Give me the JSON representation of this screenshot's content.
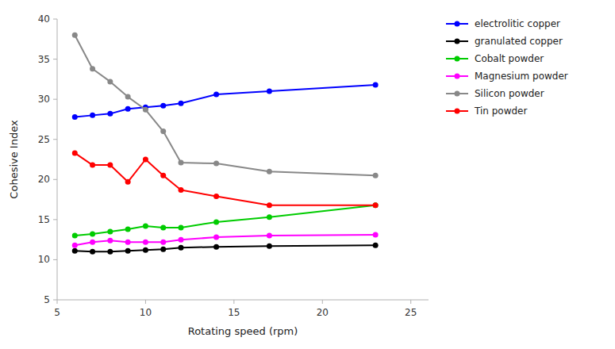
{
  "chart_data": {
    "type": "line",
    "xlabel": "Rotating speed (rpm)",
    "ylabel": "Cohesive Index",
    "x": [
      6,
      7,
      8,
      9,
      10,
      11,
      12,
      14,
      17,
      23
    ],
    "series": [
      {
        "name": "electrolitic copper",
        "color": "#0000FF",
        "marker": "circle",
        "values": [
          27.8,
          28.0,
          28.2,
          28.8,
          29.0,
          29.2,
          29.5,
          30.6,
          31.0,
          31.8
        ]
      },
      {
        "name": "granulated copper",
        "color": "#000000",
        "marker": "circle",
        "values": [
          11.1,
          11.0,
          11.0,
          11.1,
          11.2,
          11.3,
          11.5,
          11.6,
          11.7,
          11.8
        ]
      },
      {
        "name": "Cobalt powder",
        "color": "#00CC00",
        "marker": "circle",
        "values": [
          13.0,
          13.2,
          13.5,
          13.8,
          14.2,
          14.0,
          14.0,
          14.7,
          15.3,
          16.8
        ]
      },
      {
        "name": "Magnesium powder",
        "color": "#FF00FF",
        "marker": "circle",
        "values": [
          11.8,
          12.2,
          12.4,
          12.2,
          12.2,
          12.2,
          12.5,
          12.8,
          13.0,
          13.1
        ]
      },
      {
        "name": "Silicon powder",
        "color": "#888888",
        "marker": "circle",
        "values": [
          38.0,
          33.8,
          32.2,
          30.3,
          28.7,
          26.0,
          22.1,
          22.0,
          21.0,
          20.5
        ]
      },
      {
        "name": "Tin powder",
        "color": "#FF0000",
        "marker": "circle",
        "values": [
          23.3,
          21.8,
          21.8,
          19.7,
          22.5,
          20.5,
          18.7,
          17.9,
          16.8,
          16.8
        ]
      }
    ],
    "xlim": [
      5,
      26
    ],
    "ylim": [
      5,
      40
    ],
    "xticks": [
      5,
      10,
      15,
      20,
      25
    ],
    "yticks": [
      5,
      10,
      15,
      20,
      25,
      30,
      35,
      40
    ],
    "grid": false,
    "legend": "right"
  }
}
